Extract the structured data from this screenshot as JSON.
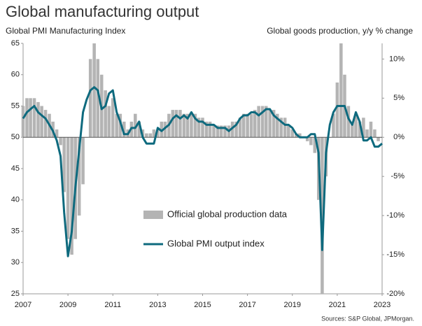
{
  "chart_data": {
    "type": "combo",
    "title": "Global manufacturing output",
    "y_label": "Global PMI Manufacturing Index",
    "y2_label": "Global goods production, y/y % change",
    "source": "Sources: S&P Global, JPMorgan.",
    "legend": "lower center",
    "xlim": [
      2007,
      2023
    ],
    "xticks": [
      2007,
      2009,
      2011,
      2013,
      2015,
      2017,
      2019,
      2021,
      2023
    ],
    "ylim": [
      25,
      65
    ],
    "yticks": [
      25,
      30,
      35,
      40,
      45,
      50,
      55,
      60,
      65
    ],
    "y2lim": [
      -20,
      12
    ],
    "y2ticks": [
      {
        "value": -20,
        "label": "-20%"
      },
      {
        "value": -15,
        "label": "-15%"
      },
      {
        "value": -10,
        "label": "-10%"
      },
      {
        "value": -5,
        "label": "-5%"
      },
      {
        "value": 0,
        "label": "0%"
      },
      {
        "value": 5,
        "label": "5%"
      },
      {
        "value": 10,
        "label": "10%"
      }
    ],
    "x": [
      2007,
      2007.17,
      2007.33,
      2007.5,
      2007.67,
      2007.83,
      2008,
      2008.17,
      2008.33,
      2008.5,
      2008.67,
      2008.83,
      2009,
      2009.17,
      2009.33,
      2009.5,
      2009.67,
      2009.83,
      2010,
      2010.17,
      2010.33,
      2010.5,
      2010.67,
      2010.83,
      2011,
      2011.17,
      2011.33,
      2011.5,
      2011.67,
      2011.83,
      2012,
      2012.17,
      2012.33,
      2012.5,
      2012.67,
      2012.83,
      2013,
      2013.17,
      2013.33,
      2013.5,
      2013.67,
      2013.83,
      2014,
      2014.17,
      2014.33,
      2014.5,
      2014.67,
      2014.83,
      2015,
      2015.17,
      2015.33,
      2015.5,
      2015.67,
      2015.83,
      2016,
      2016.17,
      2016.33,
      2016.5,
      2016.67,
      2016.83,
      2017,
      2017.17,
      2017.33,
      2017.5,
      2017.67,
      2017.83,
      2018,
      2018.17,
      2018.33,
      2018.5,
      2018.67,
      2018.83,
      2019,
      2019.17,
      2019.33,
      2019.5,
      2019.67,
      2019.83,
      2020,
      2020.17,
      2020.33,
      2020.5,
      2020.67,
      2020.83,
      2021,
      2021.17,
      2021.33,
      2021.5,
      2021.67,
      2021.83,
      2022,
      2022.17,
      2022.33,
      2022.5,
      2022.67,
      2022.83,
      2023
    ],
    "series": [
      {
        "name": "Official global production data",
        "type": "bar",
        "axis": "y2",
        "color": "#b4b4b4",
        "values": [
          4,
          5,
          5,
          5,
          4.5,
          4,
          3.5,
          3,
          2,
          1,
          -1,
          -7,
          -13,
          -15,
          -13,
          -10,
          -6,
          0,
          10,
          12,
          10,
          8,
          6,
          4,
          5,
          3,
          3,
          2,
          1,
          2,
          3,
          2,
          1,
          0.5,
          0.5,
          1,
          1,
          2,
          2,
          3,
          3.5,
          3.5,
          3.5,
          3,
          3,
          3,
          3,
          2.5,
          2.5,
          2,
          2,
          1.5,
          1.5,
          1.5,
          1.5,
          1.5,
          2,
          2,
          2.5,
          3,
          3,
          3,
          3.5,
          4,
          4,
          4,
          3.5,
          3.5,
          3,
          2.5,
          2.5,
          1.5,
          1,
          0.5,
          0.5,
          0,
          -0.5,
          -1,
          -2,
          -8,
          -20,
          -5,
          0,
          3,
          7,
          12,
          8,
          4,
          2,
          3,
          2,
          2.5,
          1,
          2,
          1,
          -0.5,
          0
        ]
      },
      {
        "name": "Global PMI output index",
        "type": "line",
        "color": "#0e6a7e",
        "values": [
          53,
          54,
          54.5,
          55,
          54,
          53.5,
          53,
          52,
          51,
          49.5,
          47,
          38,
          31,
          35,
          42,
          48,
          54,
          56,
          57.5,
          58,
          57.5,
          54.5,
          55,
          57,
          57.5,
          54,
          52.5,
          50.5,
          50.5,
          51.5,
          51.5,
          52.5,
          50,
          49,
          49,
          49,
          51.5,
          51,
          51.5,
          52,
          53,
          53.5,
          53,
          53.5,
          53,
          54,
          53,
          52.5,
          52.5,
          52,
          52,
          52,
          51.5,
          51.5,
          51.5,
          51,
          51.5,
          52,
          53,
          53.5,
          53.5,
          54,
          54,
          53.5,
          54,
          54.5,
          54.5,
          53.5,
          53,
          52.5,
          52,
          52,
          51.5,
          50.5,
          50,
          50,
          50,
          50.5,
          50.5,
          47.5,
          32,
          47.5,
          52,
          54,
          55,
          55,
          55,
          53,
          52,
          54,
          52.5,
          49.5,
          49.5,
          50,
          48.5,
          48.5,
          49
        ]
      }
    ]
  }
}
